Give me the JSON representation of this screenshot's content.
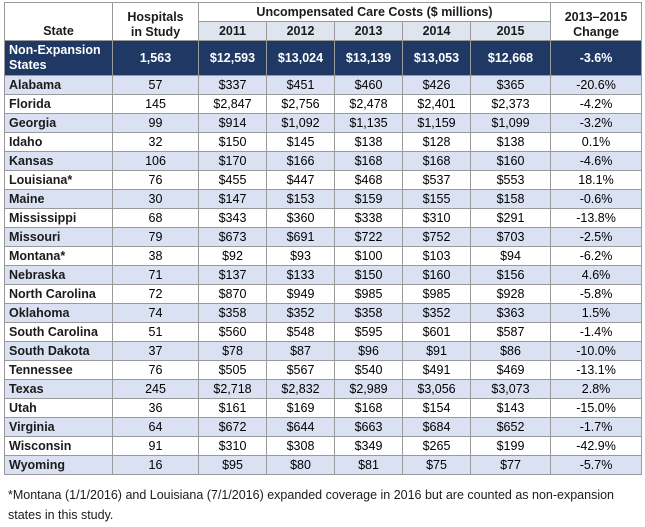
{
  "header": {
    "state": "State",
    "hospitals_line1": "Hospitals",
    "hospitals_line2": "in Study",
    "costs_group": "Uncompensated Care Costs ($ millions)",
    "years": [
      "2011",
      "2012",
      "2013",
      "2014",
      "2015"
    ],
    "change_line1": "2013–2015",
    "change_line2": "Change"
  },
  "summary_row": {
    "state_line1": "Non-Expansion",
    "state_line2": "States",
    "hospitals": "1,563",
    "costs": [
      "$12,593",
      "$13,024",
      "$13,139",
      "$13,053",
      "$12,668"
    ],
    "change": "-3.6%"
  },
  "rows": [
    {
      "state": "Alabama",
      "hospitals": "57",
      "costs": [
        "$337",
        "$451",
        "$460",
        "$426",
        "$365"
      ],
      "change": "-20.6%"
    },
    {
      "state": "Florida",
      "hospitals": "145",
      "costs": [
        "$2,847",
        "$2,756",
        "$2,478",
        "$2,401",
        "$2,373"
      ],
      "change": "-4.2%"
    },
    {
      "state": "Georgia",
      "hospitals": "99",
      "costs": [
        "$914",
        "$1,092",
        "$1,135",
        "$1,159",
        "$1,099"
      ],
      "change": "-3.2%"
    },
    {
      "state": "Idaho",
      "hospitals": "32",
      "costs": [
        "$150",
        "$145",
        "$138",
        "$128",
        "$138"
      ],
      "change": "0.1%"
    },
    {
      "state": "Kansas",
      "hospitals": "106",
      "costs": [
        "$170",
        "$166",
        "$168",
        "$168",
        "$160"
      ],
      "change": "-4.6%"
    },
    {
      "state": "Louisiana*",
      "hospitals": "76",
      "costs": [
        "$455",
        "$447",
        "$468",
        "$537",
        "$553"
      ],
      "change": "18.1%"
    },
    {
      "state": "Maine",
      "hospitals": "30",
      "costs": [
        "$147",
        "$153",
        "$159",
        "$155",
        "$158"
      ],
      "change": "-0.6%"
    },
    {
      "state": "Mississippi",
      "hospitals": "68",
      "costs": [
        "$343",
        "$360",
        "$338",
        "$310",
        "$291"
      ],
      "change": "-13.8%"
    },
    {
      "state": "Missouri",
      "hospitals": "79",
      "costs": [
        "$673",
        "$691",
        "$722",
        "$752",
        "$703"
      ],
      "change": "-2.5%"
    },
    {
      "state": "Montana*",
      "hospitals": "38",
      "costs": [
        "$92",
        "$93",
        "$100",
        "$103",
        "$94"
      ],
      "change": "-6.2%"
    },
    {
      "state": "Nebraska",
      "hospitals": "71",
      "costs": [
        "$137",
        "$133",
        "$150",
        "$160",
        "$156"
      ],
      "change": "4.6%"
    },
    {
      "state": "North Carolina",
      "hospitals": "72",
      "costs": [
        "$870",
        "$949",
        "$985",
        "$985",
        "$928"
      ],
      "change": "-5.8%"
    },
    {
      "state": "Oklahoma",
      "hospitals": "74",
      "costs": [
        "$358",
        "$352",
        "$358",
        "$352",
        "$363"
      ],
      "change": "1.5%"
    },
    {
      "state": "South Carolina",
      "hospitals": "51",
      "costs": [
        "$560",
        "$548",
        "$595",
        "$601",
        "$587"
      ],
      "change": "-1.4%"
    },
    {
      "state": "South Dakota",
      "hospitals": "37",
      "costs": [
        "$78",
        "$87",
        "$96",
        "$91",
        "$86"
      ],
      "change": "-10.0%"
    },
    {
      "state": "Tennessee",
      "hospitals": "76",
      "costs": [
        "$505",
        "$567",
        "$540",
        "$491",
        "$469"
      ],
      "change": "-13.1%"
    },
    {
      "state": "Texas",
      "hospitals": "245",
      "costs": [
        "$2,718",
        "$2,832",
        "$2,989",
        "$3,056",
        "$3,073"
      ],
      "change": "2.8%"
    },
    {
      "state": "Utah",
      "hospitals": "36",
      "costs": [
        "$161",
        "$169",
        "$168",
        "$154",
        "$143"
      ],
      "change": "-15.0%"
    },
    {
      "state": "Virginia",
      "hospitals": "64",
      "costs": [
        "$672",
        "$644",
        "$663",
        "$684",
        "$652"
      ],
      "change": "-1.7%"
    },
    {
      "state": "Wisconsin",
      "hospitals": "91",
      "costs": [
        "$310",
        "$308",
        "$349",
        "$265",
        "$199"
      ],
      "change": "-42.9%"
    },
    {
      "state": "Wyoming",
      "hospitals": "16",
      "costs": [
        "$95",
        "$80",
        "$81",
        "$75",
        "$77"
      ],
      "change": "-5.7%"
    }
  ],
  "footnote": "*Montana (1/1/2016) and Louisiana (7/1/2016) expanded coverage in 2016 but are counted as non-expansion states in this study.",
  "colors": {
    "summary_bg": "#1f3864",
    "band_bg": "#d9e1f2",
    "header_year_bg": "#dfe5ef"
  }
}
